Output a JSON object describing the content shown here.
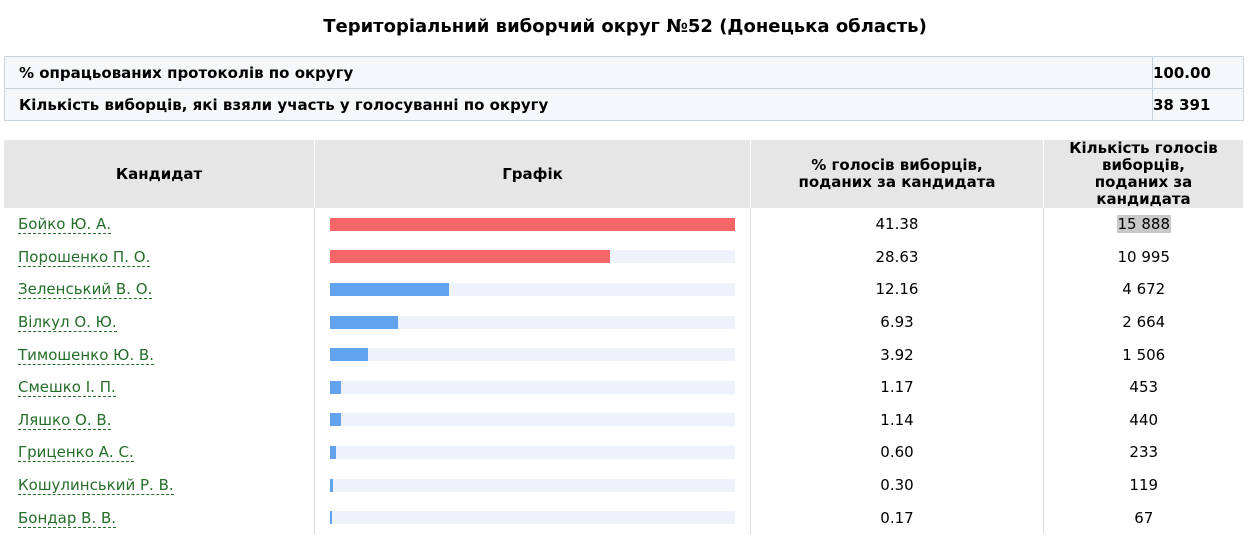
{
  "title": "Територіальний виборчий округ №52 (Донецька область)",
  "summary": [
    {
      "label": "% опрацьованих протоколів по округу",
      "value": "100.00"
    },
    {
      "label": "Кількість виборців, які взяли участь у голосуванні по округу",
      "value": "38 391"
    }
  ],
  "table": {
    "headers": {
      "candidate": "Кандидат",
      "chart": "Графік",
      "percent": "% голосів виборців, поданих за кандидата",
      "votes": "Кількість голосів виборців, поданих за кандидата"
    },
    "rows": [
      {
        "name": "Бойко Ю. А.",
        "percent": "41.38",
        "votes": "15 888",
        "share": 1.0,
        "color": "#f76666"
      },
      {
        "name": "Порошенко П. О.",
        "percent": "28.63",
        "votes": "10 995",
        "share": 0.692,
        "color": "#f76666"
      },
      {
        "name": "Зеленський В. О.",
        "percent": "12.16",
        "votes": "4 672",
        "share": 0.294,
        "color": "#62a3ef"
      },
      {
        "name": "Вілкул О. Ю.",
        "percent": "6.93",
        "votes": "2 664",
        "share": 0.167,
        "color": "#62a3ef"
      },
      {
        "name": "Тимошенко Ю. В.",
        "percent": "3.92",
        "votes": "1 506",
        "share": 0.095,
        "color": "#62a3ef"
      },
      {
        "name": "Смешко І. П.",
        "percent": "1.17",
        "votes": "453",
        "share": 0.028,
        "color": "#62a3ef"
      },
      {
        "name": "Ляшко О. В.",
        "percent": "1.14",
        "votes": "440",
        "share": 0.028,
        "color": "#62a3ef"
      },
      {
        "name": "Гриценко А. С.",
        "percent": "0.60",
        "votes": "233",
        "share": 0.015,
        "color": "#62a3ef"
      },
      {
        "name": "Кошулинський Р. В.",
        "percent": "0.30",
        "votes": "119",
        "share": 0.007,
        "color": "#62a3ef"
      },
      {
        "name": "Бондар В. В.",
        "percent": "0.17",
        "votes": "67",
        "share": 0.004,
        "color": "#62a3ef"
      }
    ]
  }
}
